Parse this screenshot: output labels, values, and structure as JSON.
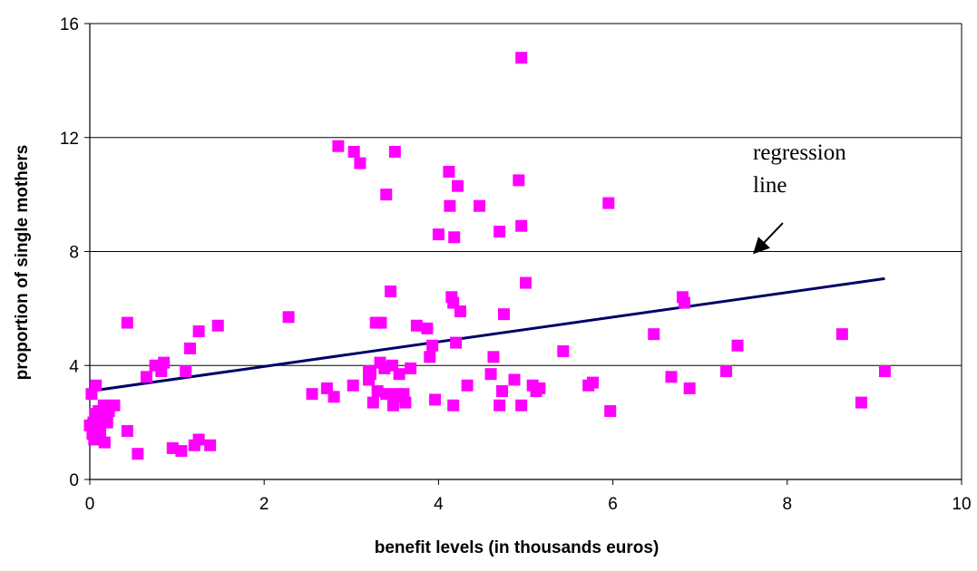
{
  "chart_data": {
    "type": "scatter",
    "title": "",
    "xlabel": "benefit levels (in thousands euros)",
    "ylabel": "proportion of single mothers",
    "xlim": [
      0,
      10
    ],
    "ylim": [
      0,
      16
    ],
    "x_ticks": [
      "0",
      "2",
      "4",
      "6",
      "8",
      "10"
    ],
    "y_ticks": [
      "0",
      "4",
      "8",
      "12",
      "16"
    ],
    "grid": "horizontal",
    "legend": "none",
    "colors": {
      "points": "#ff00ff",
      "regression": "#000066",
      "grid": "#000000",
      "axis": "#000000"
    },
    "series": [
      {
        "kind": "points",
        "points": [
          [
            0.0,
            1.9
          ],
          [
            0.02,
            3.0
          ],
          [
            0.03,
            1.6
          ],
          [
            0.04,
            2.0
          ],
          [
            0.05,
            1.4
          ],
          [
            0.06,
            2.3
          ],
          [
            0.07,
            3.3
          ],
          [
            0.09,
            1.9
          ],
          [
            0.1,
            2.4
          ],
          [
            0.12,
            1.7
          ],
          [
            0.14,
            2.1
          ],
          [
            0.16,
            2.6
          ],
          [
            0.17,
            1.3
          ],
          [
            0.2,
            2.0
          ],
          [
            0.22,
            2.4
          ],
          [
            0.28,
            2.6
          ],
          [
            0.43,
            5.5
          ],
          [
            0.43,
            1.7
          ],
          [
            0.55,
            0.9
          ],
          [
            0.65,
            3.6
          ],
          [
            0.75,
            4.0
          ],
          [
            0.82,
            3.8
          ],
          [
            0.85,
            4.1
          ],
          [
            0.95,
            1.1
          ],
          [
            1.05,
            1.0
          ],
          [
            1.1,
            3.8
          ],
          [
            1.15,
            4.6
          ],
          [
            1.2,
            1.2
          ],
          [
            1.25,
            1.4
          ],
          [
            1.25,
            5.2
          ],
          [
            1.38,
            1.2
          ],
          [
            1.47,
            5.4
          ],
          [
            2.28,
            5.7
          ],
          [
            2.55,
            3.0
          ],
          [
            2.72,
            3.2
          ],
          [
            2.8,
            2.9
          ],
          [
            2.85,
            11.7
          ],
          [
            3.02,
            3.3
          ],
          [
            3.03,
            11.5
          ],
          [
            3.1,
            11.1
          ],
          [
            3.2,
            3.5
          ],
          [
            3.2,
            3.8
          ],
          [
            3.22,
            3.7
          ],
          [
            3.25,
            2.7
          ],
          [
            3.28,
            5.5
          ],
          [
            3.3,
            3.1
          ],
          [
            3.33,
            4.1
          ],
          [
            3.34,
            5.5
          ],
          [
            3.38,
            3.9
          ],
          [
            3.4,
            10.0
          ],
          [
            3.4,
            3.0
          ],
          [
            3.45,
            6.6
          ],
          [
            3.47,
            4.0
          ],
          [
            3.48,
            2.6
          ],
          [
            3.5,
            11.5
          ],
          [
            3.52,
            3.0
          ],
          [
            3.55,
            3.7
          ],
          [
            3.57,
            2.9
          ],
          [
            3.6,
            3.0
          ],
          [
            3.62,
            2.7
          ],
          [
            3.68,
            3.9
          ],
          [
            3.75,
            5.4
          ],
          [
            3.87,
            5.3
          ],
          [
            3.9,
            4.3
          ],
          [
            3.93,
            4.7
          ],
          [
            3.96,
            2.8
          ],
          [
            4.0,
            8.6
          ],
          [
            4.12,
            10.8
          ],
          [
            4.13,
            9.6
          ],
          [
            4.15,
            6.4
          ],
          [
            4.17,
            6.2
          ],
          [
            4.17,
            2.6
          ],
          [
            4.18,
            8.5
          ],
          [
            4.2,
            4.8
          ],
          [
            4.22,
            10.3
          ],
          [
            4.25,
            5.9
          ],
          [
            4.33,
            3.3
          ],
          [
            4.47,
            9.6
          ],
          [
            4.6,
            3.7
          ],
          [
            4.63,
            4.3
          ],
          [
            4.7,
            8.7
          ],
          [
            4.7,
            2.6
          ],
          [
            4.73,
            3.1
          ],
          [
            4.75,
            5.8
          ],
          [
            4.87,
            3.5
          ],
          [
            4.92,
            10.5
          ],
          [
            4.95,
            14.8
          ],
          [
            4.95,
            8.9
          ],
          [
            4.95,
            2.6
          ],
          [
            5.0,
            6.9
          ],
          [
            5.08,
            3.3
          ],
          [
            5.12,
            3.1
          ],
          [
            5.16,
            3.2
          ],
          [
            5.43,
            4.5
          ],
          [
            5.72,
            3.3
          ],
          [
            5.77,
            3.4
          ],
          [
            5.95,
            9.7
          ],
          [
            5.97,
            2.4
          ],
          [
            6.47,
            5.1
          ],
          [
            6.67,
            3.6
          ],
          [
            6.8,
            6.4
          ],
          [
            6.82,
            6.2
          ],
          [
            6.88,
            3.2
          ],
          [
            7.3,
            3.8
          ],
          [
            7.43,
            4.7
          ],
          [
            8.63,
            5.1
          ],
          [
            8.85,
            2.7
          ],
          [
            9.12,
            3.8
          ]
        ]
      },
      {
        "kind": "line",
        "points": [
          [
            0.0,
            3.1
          ],
          [
            9.12,
            7.05
          ]
        ]
      }
    ],
    "annotations": [
      {
        "lines": [
          "regression",
          "line"
        ],
        "arrow_from": [
          7.95,
          9.0
        ],
        "arrow_to": [
          7.62,
          7.95
        ]
      }
    ]
  }
}
